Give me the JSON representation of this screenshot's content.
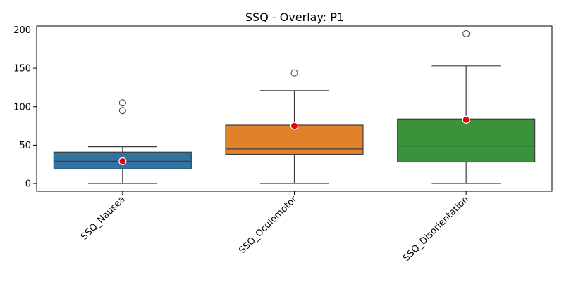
{
  "chart_data": {
    "type": "box",
    "title": "SSQ - Overlay: P1",
    "xlabel": "",
    "ylabel": "",
    "ylim": [
      -10,
      205
    ],
    "yticks": [
      0,
      50,
      100,
      150,
      200
    ],
    "ytick_labels": [
      "0",
      "50",
      "100",
      "150",
      "200"
    ],
    "categories": [
      "SSQ_Nausea",
      "SSQ_Oculomotor",
      "SSQ_Disorientation"
    ],
    "boxes": [
      {
        "category": "SSQ_Nausea",
        "color": "#3274a1",
        "whisker_low": 0,
        "q1": 19,
        "median": 29,
        "q3": 41,
        "whisker_high": 48,
        "outliers": [
          95,
          105
        ],
        "mean": 29
      },
      {
        "category": "SSQ_Oculomotor",
        "color": "#e1812c",
        "whisker_low": 0,
        "q1": 38,
        "median": 45,
        "q3": 76,
        "whisker_high": 121,
        "outliers": [
          144
        ],
        "mean": 75
      },
      {
        "category": "SSQ_Disorientation",
        "color": "#3a923a",
        "whisker_low": 0,
        "q1": 28,
        "median": 49,
        "q3": 84,
        "whisker_high": 153,
        "outliers": [
          195
        ],
        "mean": 83
      }
    ],
    "mean_marker_color": "#e8000b",
    "tick_label_rotation_deg": 45,
    "grid": false,
    "legend": "none"
  }
}
